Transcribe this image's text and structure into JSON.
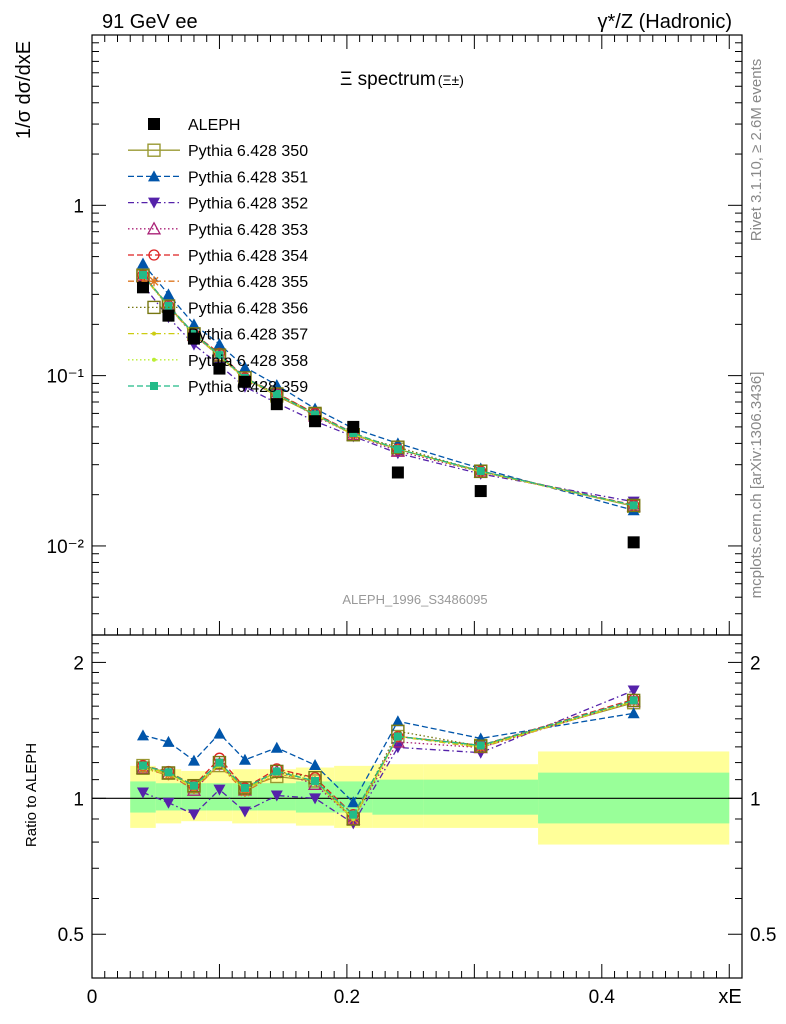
{
  "header": {
    "left": "91 GeV ee",
    "right_main": "γ*/Z (Hadronic)"
  },
  "side_labels": {
    "rivet": "Rivet 3.1.10, ≥ 2.6M events",
    "mcplots": "mcplots.cern.ch [arXiv:1306.3436]"
  },
  "chart_data": [
    {
      "panel": "main",
      "type": "scatter",
      "title": "Ξ spectrum",
      "title_suffix": "(Ξ±)",
      "analysis_id": "ALEPH_1996_S3486095",
      "ylabel": "1/σ dσ/dxE",
      "yscale": "log",
      "xlim": [
        0,
        0.51
      ],
      "ylim": [
        0.003,
        10
      ],
      "y_tick_labels": [
        "10⁻²",
        "10⁻¹",
        "1"
      ],
      "y_tick_values": [
        0.01,
        0.1,
        1
      ],
      "x": [
        0.04,
        0.06,
        0.08,
        0.1,
        0.12,
        0.145,
        0.175,
        0.205,
        0.24,
        0.305,
        0.425
      ],
      "series": [
        {
          "name": "ALEPH",
          "color": "#000000",
          "marker": "square-filled",
          "line": "none",
          "values": [
            0.33,
            0.225,
            0.165,
            0.11,
            0.092,
            0.068,
            0.054,
            0.05,
            0.027,
            0.021,
            0.0105
          ]
        },
        {
          "name": "Pythia 6.428 350",
          "color": "#999933",
          "marker": "square-open",
          "line": "solid",
          "values": [
            0.39,
            0.256,
            0.175,
            0.13,
            0.097,
            0.076,
            0.059,
            0.045,
            0.037,
            0.0275,
            0.0171
          ]
        },
        {
          "name": "Pythia 6.428 351",
          "color": "#0055aa",
          "marker": "triangle-up-filled",
          "line": "dashed",
          "values": [
            0.455,
            0.3,
            0.2,
            0.153,
            0.112,
            0.088,
            0.064,
            0.049,
            0.04,
            0.0285,
            0.0162
          ]
        },
        {
          "name": "Pythia 6.428 352",
          "color": "#5522aa",
          "marker": "triangle-down-filled",
          "line": "dashdot",
          "values": [
            0.34,
            0.22,
            0.152,
            0.115,
            0.086,
            0.069,
            0.054,
            0.044,
            0.035,
            0.0265,
            0.0182
          ]
        },
        {
          "name": "Pythia 6.428 353",
          "color": "#aa2277",
          "marker": "triangle-up-open",
          "line": "dotted",
          "values": [
            0.385,
            0.255,
            0.172,
            0.131,
            0.096,
            0.078,
            0.058,
            0.045,
            0.036,
            0.0272,
            0.0172
          ]
        },
        {
          "name": "Pythia 6.428 354",
          "color": "#dd2222",
          "marker": "circle-open",
          "line": "dashed",
          "values": [
            0.39,
            0.258,
            0.176,
            0.135,
            0.097,
            0.079,
            0.06,
            0.046,
            0.037,
            0.0275,
            0.0174
          ]
        },
        {
          "name": "Pythia 6.428 355",
          "color": "#dd7722",
          "marker": "star",
          "line": "dashdot",
          "values": [
            0.385,
            0.253,
            0.173,
            0.13,
            0.095,
            0.077,
            0.059,
            0.045,
            0.037,
            0.0272,
            0.0172
          ]
        },
        {
          "name": "Pythia 6.428 356",
          "color": "#777711",
          "marker": "square-open",
          "line": "dotted",
          "values": [
            0.385,
            0.256,
            0.176,
            0.132,
            0.097,
            0.078,
            0.06,
            0.045,
            0.038,
            0.0274,
            0.0173
          ]
        },
        {
          "name": "Pythia 6.428 357",
          "color": "#cccc11",
          "marker": "dot",
          "line": "dashdot",
          "values": [
            0.39,
            0.255,
            0.175,
            0.131,
            0.096,
            0.078,
            0.059,
            0.045,
            0.037,
            0.0273,
            0.0172
          ]
        },
        {
          "name": "Pythia 6.428 358",
          "color": "#bbee33",
          "marker": "dot",
          "line": "dotted",
          "values": [
            0.385,
            0.254,
            0.175,
            0.13,
            0.096,
            0.077,
            0.059,
            0.045,
            0.037,
            0.0273,
            0.0172
          ]
        },
        {
          "name": "Pythia 6.428 359",
          "color": "#22bb88",
          "marker": "square-filled-small",
          "line": "dashed",
          "values": [
            0.39,
            0.257,
            0.176,
            0.132,
            0.097,
            0.078,
            0.059,
            0.046,
            0.037,
            0.0275,
            0.0173
          ]
        }
      ]
    },
    {
      "panel": "ratio",
      "type": "line",
      "ylabel": "Ratio to ALEPH",
      "xlabel": "xE",
      "yscale": "log",
      "xlim": [
        0,
        0.51
      ],
      "ylim": [
        0.4,
        2.3
      ],
      "x_tick_labels": [
        "0",
        "0.2",
        "0.4"
      ],
      "x_tick_values": [
        0,
        0.2,
        0.4
      ],
      "y_tick_labels": [
        "0.5",
        "1",
        "2"
      ],
      "y_tick_values": [
        0.5,
        1,
        2
      ],
      "bands": [
        {
          "x0": 0.03,
          "x1": 0.05,
          "inner": [
            0.93,
            1.09
          ],
          "outer": [
            0.86,
            1.18
          ]
        },
        {
          "x0": 0.05,
          "x1": 0.07,
          "inner": [
            0.94,
            1.08
          ],
          "outer": [
            0.88,
            1.16
          ]
        },
        {
          "x0": 0.07,
          "x1": 0.09,
          "inner": [
            0.94,
            1.08
          ],
          "outer": [
            0.89,
            1.15
          ]
        },
        {
          "x0": 0.09,
          "x1": 0.11,
          "inner": [
            0.94,
            1.08
          ],
          "outer": [
            0.89,
            1.15
          ]
        },
        {
          "x0": 0.11,
          "x1": 0.13,
          "inner": [
            0.94,
            1.08
          ],
          "outer": [
            0.88,
            1.16
          ]
        },
        {
          "x0": 0.13,
          "x1": 0.16,
          "inner": [
            0.94,
            1.08
          ],
          "outer": [
            0.88,
            1.16
          ]
        },
        {
          "x0": 0.16,
          "x1": 0.19,
          "inner": [
            0.93,
            1.09
          ],
          "outer": [
            0.87,
            1.17
          ]
        },
        {
          "x0": 0.19,
          "x1": 0.22,
          "inner": [
            0.93,
            1.09
          ],
          "outer": [
            0.86,
            1.18
          ]
        },
        {
          "x0": 0.22,
          "x1": 0.26,
          "inner": [
            0.92,
            1.1
          ],
          "outer": [
            0.86,
            1.19
          ]
        },
        {
          "x0": 0.26,
          "x1": 0.35,
          "inner": [
            0.92,
            1.1
          ],
          "outer": [
            0.86,
            1.19
          ]
        },
        {
          "x0": 0.35,
          "x1": 0.5,
          "inner": [
            0.88,
            1.14
          ],
          "outer": [
            0.79,
            1.27
          ]
        }
      ],
      "band_colors": {
        "inner": "#99ff99",
        "outer": "#ffff99"
      }
    }
  ]
}
